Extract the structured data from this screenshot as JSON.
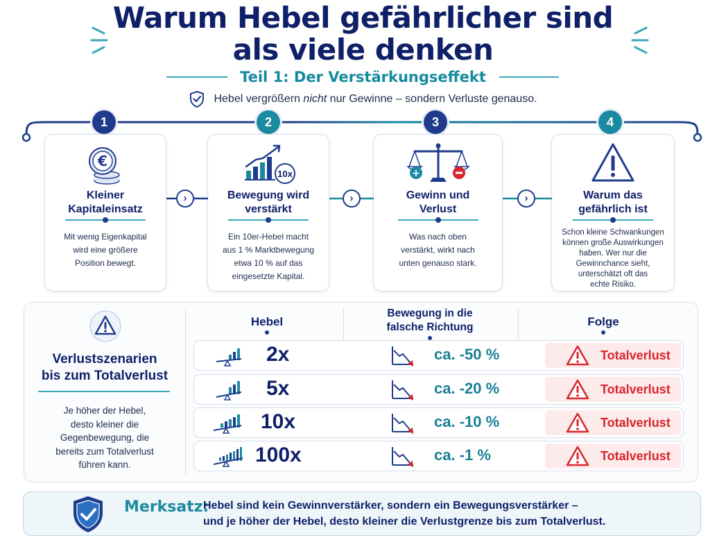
{
  "header": {
    "title_line1": "Warum Hebel gefährlicher sind",
    "title_line2": "als viele denken",
    "subtitle": "Teil 1: Der Verstärkungseffekt",
    "tagline_pre": "Hebel vergrößern ",
    "tagline_em": "nicht",
    "tagline_post": " nur Gewinne – sondern Verluste genauso."
  },
  "steps": [
    {
      "number": "1",
      "title_l1": "Kleiner",
      "title_l2": "Kapitaleinsatz",
      "body": [
        "Mit wenig Eigenkapital",
        "wird eine größere",
        "Position bewegt."
      ],
      "icon": "euro-coins-icon"
    },
    {
      "number": "2",
      "title_l1": "Bewegung wird",
      "title_l2": "verstärkt",
      "badge": "10x",
      "body": [
        "Ein 10er-Hebel macht",
        "aus 1 % Marktbewegung",
        "etwa 10 % auf das",
        "eingesetzte Kapital."
      ],
      "icon": "growth-chart-icon"
    },
    {
      "number": "3",
      "title_l1": "Gewinn und",
      "title_l2": "Verlust",
      "body": [
        "Was nach oben",
        "verstärkt, wirkt nach",
        "unten genauso stark."
      ],
      "icon": "balance-scale-icon"
    },
    {
      "number": "4",
      "title_l1": "Warum das",
      "title_l2": "gefährlich ist",
      "body": [
        "Schon kleine Schwankungen",
        "können große Auswirkungen",
        "haben. Wer nur die",
        "Gewinnchance sieht,",
        "unterschätzt oft das",
        "echte Risiko."
      ],
      "icon": "warning-icon"
    }
  ],
  "scenarios": {
    "title_l1": "Verlustszenarien",
    "title_l2": "bis zum Totalverlust",
    "body": [
      "Je höher der Hebel,",
      "desto kleiner die",
      "Gegenbewegung, die",
      "bereits zum Totalverlust",
      "führen kann."
    ],
    "col_hebel": "Hebel",
    "col_move_l1": "Bewegung in die",
    "col_move_l2": "falsche Richtung",
    "col_folge": "Folge",
    "rows": [
      {
        "hebel": "2x",
        "move": "ca. -50 %",
        "result": "Totalverlust"
      },
      {
        "hebel": "5x",
        "move": "ca. -20 %",
        "result": "Totalverlust"
      },
      {
        "hebel": "10x",
        "move": "ca. -10 %",
        "result": "Totalverlust"
      },
      {
        "hebel": "100x",
        "move": "ca. -1 %",
        "result": "Totalverlust"
      }
    ]
  },
  "merksatz": {
    "label": "Merksatz:",
    "line1": "Hebel sind kein Gewinnverstärker, sondern ein Bewegungsverstärker –",
    "line2": "und je höher der Hebel, desto kleiner die Verlustgrenze bis zum Totalverlust."
  },
  "colors": {
    "navy": "#0f2068",
    "blue": "#1f3c8c",
    "teal": "#158a9e",
    "red": "#d7262e",
    "red_bg": "#fdeaea"
  }
}
